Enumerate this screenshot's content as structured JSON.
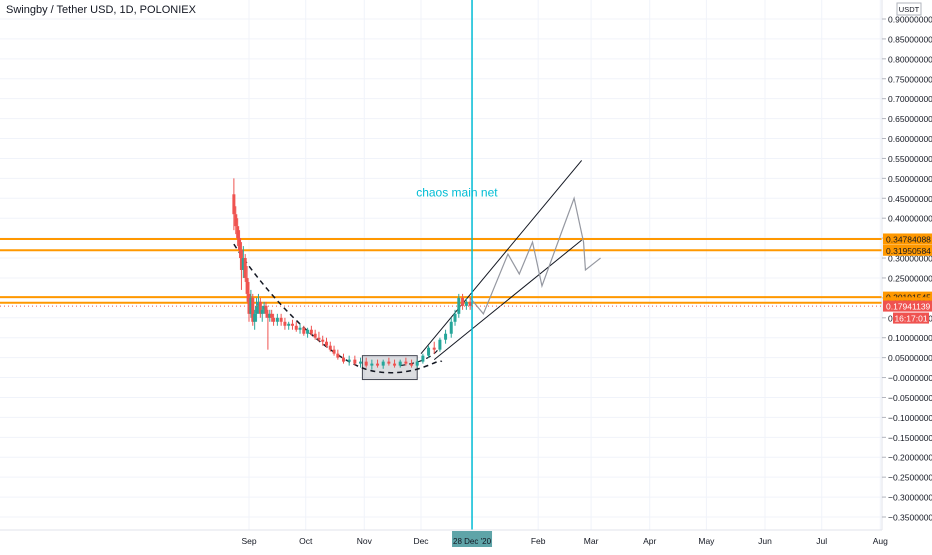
{
  "header": {
    "title": "Swingby / Tether USD, 1D, POLONIEX"
  },
  "axis": {
    "currency": "USDT",
    "ylim": [
      -0.375,
      0.92
    ]
  },
  "chart_data": {
    "type": "candlestick",
    "title": "Swingby / Tether USD, 1D, POLONIEX",
    "yticks": [
      "0.90000000",
      "0.85000000",
      "0.80000000",
      "0.75000000",
      "0.70000000",
      "0.65000000",
      "0.60000000",
      "0.55000000",
      "0.50000000",
      "0.45000000",
      "0.40000000",
      "0.35000000",
      "0.30000000",
      "0.25000000",
      "0.20000000",
      "0.15000000",
      "0.10000000",
      "0.05000000",
      "−0.00000000",
      "−0.05000000",
      "−0.10000000",
      "−0.15000000",
      "−0.20000000",
      "−0.25000000",
      "−0.30000000",
      "−0.35000000"
    ],
    "ytick_values": [
      0.9,
      0.85,
      0.8,
      0.75,
      0.7,
      0.65,
      0.6,
      0.55,
      0.5,
      0.45,
      0.4,
      0.35,
      0.3,
      0.25,
      0.2,
      0.15,
      0.1,
      0.05,
      0.0,
      -0.05,
      -0.1,
      -0.15,
      -0.2,
      -0.25,
      -0.3,
      -0.35
    ],
    "xticks": [
      {
        "label": "Sep",
        "date": "2020-09-01"
      },
      {
        "label": "Oct",
        "date": "2020-10-01"
      },
      {
        "label": "Nov",
        "date": "2020-11-01"
      },
      {
        "label": "Dec",
        "date": "2020-12-01"
      },
      {
        "label": "Feb",
        "date": "2021-02-01"
      },
      {
        "label": "Mar",
        "date": "2021-03-01"
      },
      {
        "label": "Apr",
        "date": "2021-04-01"
      },
      {
        "label": "May",
        "date": "2021-05-01"
      },
      {
        "label": "Jun",
        "date": "2021-06-01"
      },
      {
        "label": "Jul",
        "date": "2021-07-01"
      },
      {
        "label": "Aug",
        "date": "2021-08-01"
      }
    ],
    "price_levels": [
      {
        "label": "0.34784088",
        "value": 0.34784088,
        "color": "#ff9800"
      },
      {
        "label": "0.31950584",
        "value": 0.31950584,
        "color": "#ff9800"
      },
      {
        "label": "0.20191545",
        "value": 0.20191545,
        "color": "#ff9800"
      },
      {
        "label": "0.18774794",
        "value": 0.18774794,
        "color": "#ff9800"
      }
    ],
    "last_price": {
      "label": "0.17941139",
      "value": 0.17941139,
      "color": "#ef5350"
    },
    "countdown": "16:17:01",
    "vertical_line": {
      "date": "2020-12-28",
      "label": "28 Dec '20",
      "color": "#00bcd4"
    },
    "annotation": {
      "text": "chaos main net",
      "date": "2020-12-20",
      "value": 0.465,
      "color": "#00bcd4"
    },
    "candles": [
      {
        "date": "2020-08-24",
        "o": 0.46,
        "h": 0.5,
        "l": 0.37,
        "c": 0.41
      },
      {
        "date": "2020-08-25",
        "o": 0.41,
        "h": 0.43,
        "l": 0.36,
        "c": 0.38
      },
      {
        "date": "2020-08-26",
        "o": 0.38,
        "h": 0.4,
        "l": 0.33,
        "c": 0.35
      },
      {
        "date": "2020-08-27",
        "o": 0.35,
        "h": 0.37,
        "l": 0.3,
        "c": 0.32
      },
      {
        "date": "2020-08-28",
        "o": 0.32,
        "h": 0.34,
        "l": 0.22,
        "c": 0.27
      },
      {
        "date": "2020-08-29",
        "o": 0.27,
        "h": 0.33,
        "l": 0.25,
        "c": 0.3
      },
      {
        "date": "2020-08-30",
        "o": 0.3,
        "h": 0.31,
        "l": 0.24,
        "c": 0.25
      },
      {
        "date": "2020-08-31",
        "o": 0.25,
        "h": 0.28,
        "l": 0.19,
        "c": 0.21
      },
      {
        "date": "2020-09-01",
        "o": 0.21,
        "h": 0.24,
        "l": 0.14,
        "c": 0.16
      },
      {
        "date": "2020-09-02",
        "o": 0.16,
        "h": 0.22,
        "l": 0.15,
        "c": 0.2
      },
      {
        "date": "2020-09-03",
        "o": 0.2,
        "h": 0.21,
        "l": 0.13,
        "c": 0.14
      },
      {
        "date": "2020-09-04",
        "o": 0.14,
        "h": 0.17,
        "l": 0.12,
        "c": 0.16
      },
      {
        "date": "2020-09-05",
        "o": 0.16,
        "h": 0.2,
        "l": 0.14,
        "c": 0.18
      },
      {
        "date": "2020-09-06",
        "o": 0.18,
        "h": 0.21,
        "l": 0.16,
        "c": 0.19
      },
      {
        "date": "2020-09-07",
        "o": 0.19,
        "h": 0.2,
        "l": 0.15,
        "c": 0.16
      },
      {
        "date": "2020-09-08",
        "o": 0.16,
        "h": 0.18,
        "l": 0.14,
        "c": 0.17
      },
      {
        "date": "2020-09-09",
        "o": 0.17,
        "h": 0.19,
        "l": 0.16,
        "c": 0.18
      },
      {
        "date": "2020-09-10",
        "o": 0.18,
        "h": 0.19,
        "l": 0.15,
        "c": 0.16
      },
      {
        "date": "2020-09-11",
        "o": 0.16,
        "h": 0.17,
        "l": 0.07,
        "c": 0.15
      },
      {
        "date": "2020-09-12",
        "o": 0.15,
        "h": 0.17,
        "l": 0.14,
        "c": 0.16
      },
      {
        "date": "2020-09-13",
        "o": 0.16,
        "h": 0.17,
        "l": 0.14,
        "c": 0.15
      },
      {
        "date": "2020-09-14",
        "o": 0.15,
        "h": 0.16,
        "l": 0.13,
        "c": 0.14
      },
      {
        "date": "2020-09-16",
        "o": 0.14,
        "h": 0.16,
        "l": 0.13,
        "c": 0.15
      },
      {
        "date": "2020-09-18",
        "o": 0.15,
        "h": 0.16,
        "l": 0.13,
        "c": 0.14
      },
      {
        "date": "2020-09-20",
        "o": 0.14,
        "h": 0.15,
        "l": 0.12,
        "c": 0.13
      },
      {
        "date": "2020-09-22",
        "o": 0.13,
        "h": 0.14,
        "l": 0.12,
        "c": 0.135
      },
      {
        "date": "2020-09-24",
        "o": 0.135,
        "h": 0.145,
        "l": 0.12,
        "c": 0.13
      },
      {
        "date": "2020-09-26",
        "o": 0.13,
        "h": 0.14,
        "l": 0.115,
        "c": 0.12
      },
      {
        "date": "2020-09-28",
        "o": 0.12,
        "h": 0.135,
        "l": 0.11,
        "c": 0.125
      },
      {
        "date": "2020-09-30",
        "o": 0.125,
        "h": 0.13,
        "l": 0.105,
        "c": 0.11
      },
      {
        "date": "2020-10-02",
        "o": 0.11,
        "h": 0.125,
        "l": 0.1,
        "c": 0.12
      },
      {
        "date": "2020-10-04",
        "o": 0.12,
        "h": 0.13,
        "l": 0.105,
        "c": 0.11
      },
      {
        "date": "2020-10-06",
        "o": 0.11,
        "h": 0.12,
        "l": 0.095,
        "c": 0.1
      },
      {
        "date": "2020-10-08",
        "o": 0.1,
        "h": 0.115,
        "l": 0.09,
        "c": 0.095
      },
      {
        "date": "2020-10-10",
        "o": 0.095,
        "h": 0.105,
        "l": 0.08,
        "c": 0.09
      },
      {
        "date": "2020-10-12",
        "o": 0.09,
        "h": 0.1,
        "l": 0.075,
        "c": 0.08
      },
      {
        "date": "2020-10-14",
        "o": 0.08,
        "h": 0.09,
        "l": 0.065,
        "c": 0.07
      },
      {
        "date": "2020-10-16",
        "o": 0.07,
        "h": 0.08,
        "l": 0.055,
        "c": 0.06
      },
      {
        "date": "2020-10-18",
        "o": 0.06,
        "h": 0.07,
        "l": 0.045,
        "c": 0.05
      },
      {
        "date": "2020-10-21",
        "o": 0.05,
        "h": 0.06,
        "l": 0.035,
        "c": 0.04
      },
      {
        "date": "2020-10-24",
        "o": 0.04,
        "h": 0.055,
        "l": 0.03,
        "c": 0.045
      },
      {
        "date": "2020-10-27",
        "o": 0.045,
        "h": 0.055,
        "l": 0.03,
        "c": 0.035
      },
      {
        "date": "2020-10-30",
        "o": 0.035,
        "h": 0.05,
        "l": 0.025,
        "c": 0.04
      },
      {
        "date": "2020-11-02",
        "o": 0.04,
        "h": 0.05,
        "l": 0.025,
        "c": 0.03
      },
      {
        "date": "2020-11-05",
        "o": 0.03,
        "h": 0.045,
        "l": 0.02,
        "c": 0.035
      },
      {
        "date": "2020-11-08",
        "o": 0.035,
        "h": 0.045,
        "l": 0.025,
        "c": 0.03
      },
      {
        "date": "2020-11-11",
        "o": 0.03,
        "h": 0.045,
        "l": 0.022,
        "c": 0.04
      },
      {
        "date": "2020-11-14",
        "o": 0.04,
        "h": 0.05,
        "l": 0.03,
        "c": 0.035
      },
      {
        "date": "2020-11-17",
        "o": 0.035,
        "h": 0.045,
        "l": 0.025,
        "c": 0.03
      },
      {
        "date": "2020-11-20",
        "o": 0.03,
        "h": 0.045,
        "l": 0.025,
        "c": 0.04
      },
      {
        "date": "2020-11-23",
        "o": 0.04,
        "h": 0.05,
        "l": 0.03,
        "c": 0.035
      },
      {
        "date": "2020-11-26",
        "o": 0.035,
        "h": 0.045,
        "l": 0.025,
        "c": 0.03
      },
      {
        "date": "2020-11-29",
        "o": 0.03,
        "h": 0.045,
        "l": 0.025,
        "c": 0.04
      },
      {
        "date": "2020-12-02",
        "o": 0.04,
        "h": 0.06,
        "l": 0.035,
        "c": 0.055
      },
      {
        "date": "2020-12-05",
        "o": 0.055,
        "h": 0.08,
        "l": 0.05,
        "c": 0.075
      },
      {
        "date": "2020-12-08",
        "o": 0.075,
        "h": 0.09,
        "l": 0.06,
        "c": 0.07
      },
      {
        "date": "2020-12-11",
        "o": 0.07,
        "h": 0.1,
        "l": 0.065,
        "c": 0.095
      },
      {
        "date": "2020-12-14",
        "o": 0.095,
        "h": 0.12,
        "l": 0.085,
        "c": 0.11
      },
      {
        "date": "2020-12-17",
        "o": 0.11,
        "h": 0.15,
        "l": 0.1,
        "c": 0.14
      },
      {
        "date": "2020-12-19",
        "o": 0.14,
        "h": 0.17,
        "l": 0.13,
        "c": 0.16
      },
      {
        "date": "2020-12-21",
        "o": 0.16,
        "h": 0.21,
        "l": 0.15,
        "c": 0.2
      },
      {
        "date": "2020-12-23",
        "o": 0.2,
        "h": 0.21,
        "l": 0.17,
        "c": 0.18
      },
      {
        "date": "2020-12-25",
        "o": 0.18,
        "h": 0.2,
        "l": 0.17,
        "c": 0.19
      },
      {
        "date": "2020-12-27",
        "o": 0.19,
        "h": 0.2,
        "l": 0.17,
        "c": 0.18
      }
    ]
  }
}
